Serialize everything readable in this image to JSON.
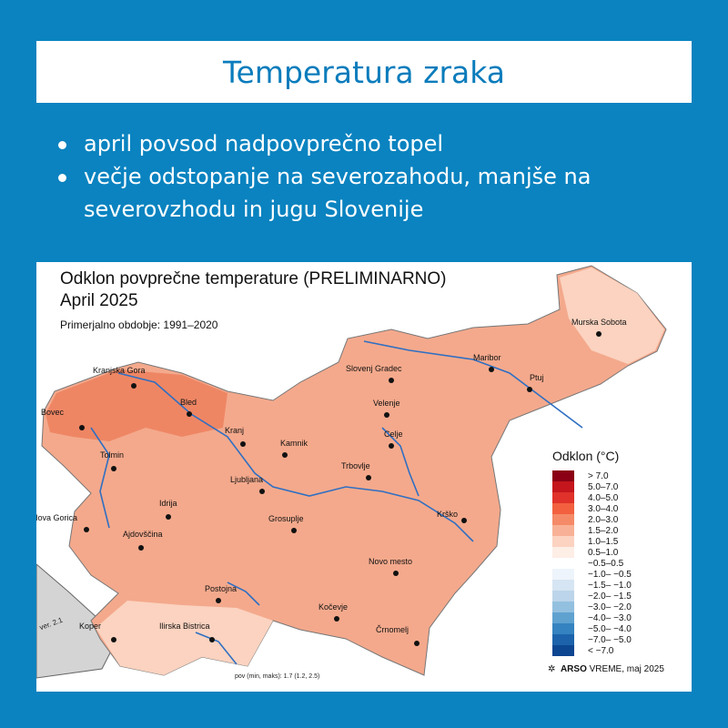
{
  "header": {
    "title": "Temperatura zraka"
  },
  "bullets": [
    "april povsod nadpovprečno topel",
    "večje odstopanje na severozahodu, manjše na severovzhodu in jugu Slovenije"
  ],
  "map": {
    "title": "Odklon povprečne temperature (PRELIMINARNO)",
    "subtitle": "April 2025",
    "reference": "Primerjalno obdobje: 1991–2020",
    "version": "ver. 2.1",
    "stats": "pov (min, maks): 1.7 (1.2, 2.5)",
    "credit_brand": "ARSO",
    "credit_rest": "VREME, maj 2025",
    "cities": [
      "Murska Sobota",
      "Maribor",
      "Slovenj Gradec",
      "Ptuj",
      "Kranjska Gora",
      "Bled",
      "Bovec",
      "Velenje",
      "Kranj",
      "Kamnik",
      "Celje",
      "Tolmin",
      "Trbovlje",
      "Ljubljana",
      "Idrija",
      "Nova Gorica",
      "Grosuplje",
      "Krško",
      "Ajdovščina",
      "Postojna",
      "Novo mesto",
      "Kočevje",
      "Koper",
      "Ilirska Bistrica",
      "Črnomelj"
    ],
    "legend": {
      "title": "Odklon (°C)",
      "items": [
        {
          "label": "> 7.0",
          "color": "#8b0014"
        },
        {
          "label": "5.0–7.0",
          "color": "#c4161c"
        },
        {
          "label": "4.0–5.0",
          "color": "#e0322a"
        },
        {
          "label": "3.0–4.0",
          "color": "#f2603f"
        },
        {
          "label": "2.0–3.0",
          "color": "#f58a68"
        },
        {
          "label": "1.5–2.0",
          "color": "#f8b196"
        },
        {
          "label": "1.0–1.5",
          "color": "#fbd3c0"
        },
        {
          "label": "0.5–1.0",
          "color": "#fdeee6"
        },
        {
          "label": "−0.5–0.5",
          "color": "#ffffff"
        },
        {
          "label": "−1.0– −0.5",
          "color": "#eef4fb"
        },
        {
          "label": "−1.5– −1.0",
          "color": "#d6e5f3"
        },
        {
          "label": "−2.0– −1.5",
          "color": "#bcd5ea"
        },
        {
          "label": "−3.0– −2.0",
          "color": "#93c0df"
        },
        {
          "label": "−4.0– −3.0",
          "color": "#5fa2d0"
        },
        {
          "label": "−5.0– −4.0",
          "color": "#3583c0"
        },
        {
          "label": "−7.0– −5.0",
          "color": "#1c63ab"
        },
        {
          "label": "< −7.0",
          "color": "#0c4590"
        }
      ]
    }
  }
}
